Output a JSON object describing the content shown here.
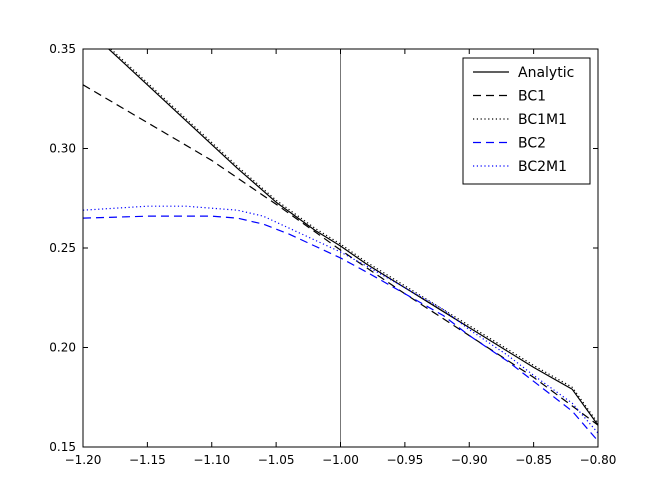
{
  "chart_data": {
    "type": "line",
    "title": "",
    "xlabel": "",
    "ylabel": "",
    "xlim": [
      -1.2,
      -0.8
    ],
    "ylim": [
      0.15,
      0.35
    ],
    "x_ticks": [
      -1.2,
      -1.15,
      -1.1,
      -1.05,
      -1.0,
      -0.95,
      -0.9,
      -0.85,
      -0.8
    ],
    "x_tick_labels": [
      "−1.20",
      "−1.15",
      "−1.10",
      "−1.05",
      "−1.00",
      "−0.95",
      "−0.90",
      "−0.85",
      "−0.80"
    ],
    "y_ticks": [
      0.15,
      0.2,
      0.25,
      0.3,
      0.35
    ],
    "y_tick_labels": [
      "0.15",
      "0.20",
      "0.25",
      "0.30",
      "0.35"
    ],
    "vertical_reference_line": -1.0,
    "grid": false,
    "legend_position": "top-right",
    "series": [
      {
        "name": "Analytic",
        "color": "#000000",
        "style": "solid",
        "x": [
          -1.2,
          -1.18,
          -1.15,
          -1.12,
          -1.1,
          -1.08,
          -1.05,
          -1.02,
          -1.0,
          -0.98,
          -0.95,
          -0.92,
          -0.9,
          -0.88,
          -0.85,
          -0.82,
          -0.8
        ],
        "y": [
          0.362,
          0.35,
          0.332,
          0.314,
          0.302,
          0.29,
          0.273,
          0.259,
          0.251,
          0.242,
          0.23,
          0.218,
          0.21,
          0.202,
          0.19,
          0.179,
          0.161
        ]
      },
      {
        "name": "BC1",
        "color": "#000000",
        "style": "dashed",
        "x": [
          -1.2,
          -1.15,
          -1.1,
          -1.05,
          -1.0,
          -0.95,
          -0.9,
          -0.85,
          -0.8
        ],
        "y": [
          0.332,
          0.313,
          0.294,
          0.272,
          0.249,
          0.227,
          0.206,
          0.185,
          0.161
        ]
      },
      {
        "name": "BC1M1",
        "color": "#000000",
        "style": "dotted",
        "x": [
          -1.2,
          -1.18,
          -1.15,
          -1.12,
          -1.1,
          -1.08,
          -1.05,
          -1.02,
          -1.0,
          -0.98,
          -0.95,
          -0.92,
          -0.9,
          -0.88,
          -0.85,
          -0.82,
          -0.8
        ],
        "y": [
          0.363,
          0.351,
          0.333,
          0.315,
          0.303,
          0.291,
          0.274,
          0.26,
          0.252,
          0.243,
          0.231,
          0.219,
          0.211,
          0.203,
          0.191,
          0.18,
          0.162
        ]
      },
      {
        "name": "BC2",
        "color": "#0000ff",
        "style": "dashed",
        "x": [
          -1.2,
          -1.15,
          -1.12,
          -1.1,
          -1.08,
          -1.06,
          -1.04,
          -1.02,
          -1.0,
          -0.98,
          -0.95,
          -0.92,
          -0.9,
          -0.87,
          -0.85,
          -0.82,
          -0.8
        ],
        "y": [
          0.265,
          0.266,
          0.266,
          0.266,
          0.265,
          0.262,
          0.257,
          0.251,
          0.245,
          0.238,
          0.227,
          0.216,
          0.206,
          0.193,
          0.183,
          0.168,
          0.153
        ]
      },
      {
        "name": "BC2M1",
        "color": "#0000ff",
        "style": "dotted",
        "x": [
          -1.2,
          -1.15,
          -1.12,
          -1.1,
          -1.08,
          -1.06,
          -1.04,
          -1.02,
          -1.0,
          -0.98,
          -0.95,
          -0.92,
          -0.9,
          -0.87,
          -0.85,
          -0.82,
          -0.8
        ],
        "y": [
          0.269,
          0.271,
          0.271,
          0.27,
          0.269,
          0.266,
          0.26,
          0.254,
          0.248,
          0.241,
          0.23,
          0.219,
          0.209,
          0.196,
          0.186,
          0.172,
          0.157
        ]
      }
    ]
  }
}
